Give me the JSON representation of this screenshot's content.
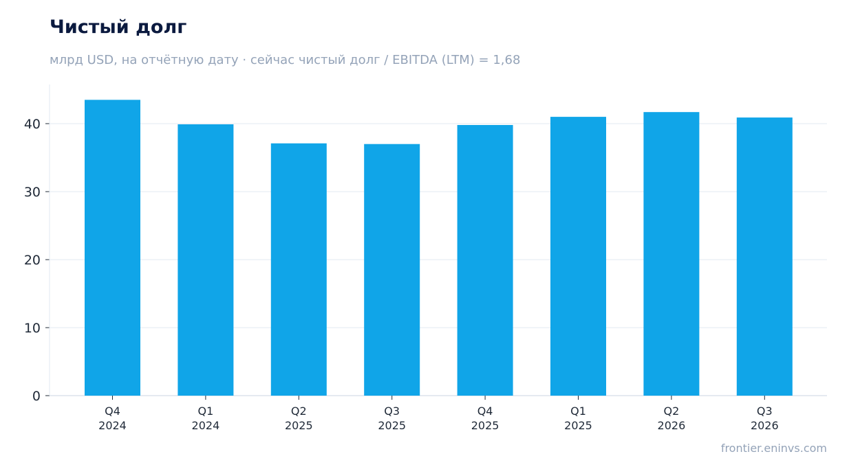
{
  "header": {
    "title": "Чистый долг",
    "subtitle": "млрд USD, на отчётную дату · сейчас чистый долг / EBITDA (LTM) = 1,68"
  },
  "footer": {
    "source": "frontier.eninvs.com"
  },
  "colors": {
    "bar": "#10a5e8",
    "grid": "#e2e8f0",
    "axis": "#cbd5e1",
    "tick_text": "#1f2937",
    "title": "#0b1a3f",
    "muted": "#94a3b8"
  },
  "chart_data": {
    "type": "bar",
    "categories": [
      [
        "Q4",
        "2024"
      ],
      [
        "Q1",
        "2024"
      ],
      [
        "Q2",
        "2025"
      ],
      [
        "Q3",
        "2025"
      ],
      [
        "Q4",
        "2025"
      ],
      [
        "Q1",
        "2025"
      ],
      [
        "Q2",
        "2026"
      ],
      [
        "Q3",
        "2026"
      ]
    ],
    "values": [
      43.5,
      39.9,
      37.1,
      37.0,
      39.8,
      41.0,
      41.7,
      40.9
    ],
    "ylim": [
      0,
      45
    ],
    "yticks": [
      0,
      10,
      20,
      30,
      40
    ],
    "grid": true,
    "legend": "none"
  }
}
